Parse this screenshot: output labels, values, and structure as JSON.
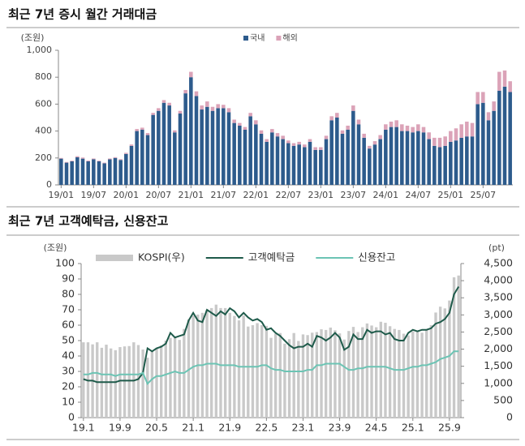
{
  "chart_data": [
    {
      "type": "bar",
      "stacked": true,
      "title": "최근 7년 증시 월간 거래대금",
      "ylabel": "(조원)",
      "categories": [
        "19/01",
        null,
        null,
        null,
        null,
        null,
        "19/07",
        null,
        null,
        null,
        null,
        null,
        "20/01",
        null,
        null,
        null,
        null,
        null,
        "20/07",
        null,
        null,
        null,
        null,
        null,
        "21/01",
        null,
        null,
        null,
        null,
        null,
        "21/07",
        null,
        null,
        null,
        null,
        null,
        "22/01",
        null,
        null,
        null,
        null,
        null,
        "22/07",
        null,
        null,
        null,
        null,
        null,
        "23/01",
        null,
        null,
        null,
        null,
        null,
        "23/07",
        null,
        null,
        null,
        null,
        null,
        "24/01",
        null,
        null,
        null,
        null,
        null,
        "24/07",
        null,
        null,
        null,
        null,
        null,
        "25/01",
        null,
        null,
        null,
        null,
        null,
        "25/07",
        null,
        null,
        null,
        null,
        null
      ],
      "series": [
        {
          "name": "국내",
          "color": "#2d5b8c",
          "values": [
            195,
            165,
            175,
            205,
            195,
            175,
            190,
            175,
            160,
            190,
            200,
            185,
            230,
            290,
            400,
            410,
            370,
            520,
            550,
            610,
            590,
            390,
            530,
            680,
            800,
            660,
            560,
            580,
            550,
            570,
            570,
            540,
            460,
            440,
            410,
            510,
            450,
            380,
            320,
            390,
            360,
            340,
            310,
            290,
            300,
            280,
            320,
            260,
            260,
            340,
            480,
            500,
            380,
            410,
            550,
            450,
            350,
            270,
            300,
            340,
            410,
            430,
            430,
            400,
            400,
            390,
            400,
            390,
            340,
            290,
            280,
            290,
            320,
            330,
            350,
            360,
            360,
            600,
            610,
            480,
            550,
            700,
            730,
            690
          ]
        },
        {
          "name": "해외",
          "color": "#dba3b8",
          "values": [
            5,
            5,
            5,
            8,
            8,
            6,
            6,
            5,
            5,
            6,
            6,
            6,
            8,
            10,
            15,
            15,
            15,
            15,
            20,
            20,
            20,
            15,
            20,
            25,
            40,
            35,
            30,
            40,
            30,
            30,
            25,
            30,
            25,
            20,
            20,
            25,
            30,
            25,
            20,
            25,
            25,
            25,
            20,
            20,
            20,
            20,
            20,
            20,
            20,
            25,
            30,
            35,
            25,
            30,
            40,
            35,
            30,
            20,
            25,
            30,
            40,
            40,
            50,
            50,
            40,
            40,
            50,
            40,
            50,
            60,
            70,
            70,
            80,
            90,
            100,
            110,
            100,
            90,
            80,
            60,
            70,
            140,
            120,
            80
          ]
        }
      ],
      "ylim": [
        0,
        1000
      ],
      "yticks": [
        0,
        200,
        400,
        600,
        800,
        {
          "value": 1000,
          "label": "1,000"
        }
      ],
      "grid": false
    },
    {
      "type": "combo",
      "title": "최근 7년 고객예탁금, 신용잔고",
      "ylabel": "(조원)",
      "y2label": "(pt)",
      "categories": [
        "19.1",
        null,
        null,
        null,
        null,
        null,
        null,
        null,
        "19.9",
        null,
        null,
        null,
        null,
        null,
        null,
        null,
        "20.5",
        null,
        null,
        null,
        null,
        null,
        null,
        null,
        "21.1",
        null,
        null,
        null,
        null,
        null,
        null,
        null,
        "21.9",
        null,
        null,
        null,
        null,
        null,
        null,
        null,
        "22.5",
        null,
        null,
        null,
        null,
        null,
        null,
        null,
        "23.1",
        null,
        null,
        null,
        null,
        null,
        null,
        null,
        "23.9",
        null,
        null,
        null,
        null,
        null,
        null,
        null,
        "24.5",
        null,
        null,
        null,
        null,
        null,
        null,
        null,
        "25.1",
        null,
        null,
        null,
        null,
        null,
        null,
        null,
        "25.9",
        null,
        null
      ],
      "series": [
        {
          "name": "KOSPI(우)",
          "type": "bar",
          "axis": "y2",
          "color": "#c9c9c9",
          "values": [
            2200,
            2200,
            2140,
            2200,
            2040,
            2130,
            2020,
            1970,
            2060,
            2080,
            2090,
            2200,
            2120,
            1990,
            1750,
            1950,
            2030,
            2110,
            2250,
            2330,
            2330,
            2270,
            2590,
            2870,
            2980,
            3010,
            3060,
            3150,
            3200,
            3300,
            3200,
            3200,
            3060,
            2970,
            2840,
            2980,
            2660,
            2700,
            2760,
            2700,
            2680,
            2330,
            2450,
            2470,
            2160,
            2290,
            2470,
            2240,
            2430,
            2410,
            2480,
            2500,
            2580,
            2560,
            2630,
            2550,
            2460,
            2280,
            2530,
            2650,
            2500,
            2640,
            2750,
            2690,
            2640,
            2800,
            2770,
            2670,
            2590,
            2560,
            2450,
            2400,
            2520,
            2530,
            2480,
            2560,
            2700,
            3070,
            3240,
            3190,
            3420,
            4100,
            4150
          ]
        },
        {
          "name": "고객예탁금",
          "type": "line",
          "color": "#1e5a4a",
          "values": [
            25,
            24,
            24,
            23,
            23,
            23,
            23,
            23,
            24,
            24,
            24,
            24,
            25,
            29,
            45,
            43,
            45,
            46,
            48,
            55,
            52,
            53,
            54,
            63,
            68,
            63,
            62,
            70,
            68,
            66,
            69,
            67,
            71,
            69,
            65,
            68,
            65,
            63,
            64,
            62,
            57,
            58,
            55,
            53,
            50,
            47,
            45,
            46,
            46,
            48,
            46,
            53,
            52,
            50,
            52,
            55,
            52,
            44,
            46,
            54,
            51,
            51,
            57,
            55,
            56,
            56,
            54,
            55,
            51,
            50,
            50,
            55,
            57,
            56,
            57,
            57,
            58,
            61,
            62,
            64,
            68,
            80,
            85
          ]
        },
        {
          "name": "신용잔고",
          "type": "line",
          "color": "#6cc4b4",
          "values": [
            28,
            28,
            29,
            29,
            28,
            28,
            28,
            27,
            28,
            28,
            28,
            28,
            28,
            29,
            22,
            25,
            27,
            27,
            28,
            29,
            30,
            29,
            29,
            31,
            33,
            34,
            34,
            35,
            35,
            35,
            34,
            34,
            34,
            34,
            33,
            33,
            33,
            33,
            33,
            34,
            34,
            32,
            31,
            31,
            30,
            30,
            30,
            30,
            30,
            31,
            31,
            34,
            34,
            35,
            35,
            35,
            35,
            33,
            31,
            31,
            32,
            32,
            33,
            33,
            33,
            33,
            33,
            32,
            31,
            31,
            31,
            32,
            33,
            33,
            34,
            34,
            35,
            36,
            38,
            39,
            40,
            43,
            43
          ]
        }
      ],
      "ylim": [
        0,
        100
      ],
      "yticks": [
        0,
        10,
        20,
        30,
        40,
        50,
        60,
        70,
        80,
        90,
        100
      ],
      "y2lim": [
        0,
        4500
      ],
      "y2ticks": [
        0,
        500,
        {
          "value": 1000,
          "label": "1,000"
        },
        {
          "value": 1500,
          "label": "1,500"
        },
        {
          "value": 2000,
          "label": "2,000"
        },
        {
          "value": 2500,
          "label": "2,500"
        },
        {
          "value": 3000,
          "label": "3,000"
        },
        {
          "value": 3500,
          "label": "3,500"
        },
        {
          "value": 4000,
          "label": "4,000"
        },
        {
          "value": 4500,
          "label": "4,500"
        }
      ],
      "grid": false
    }
  ]
}
